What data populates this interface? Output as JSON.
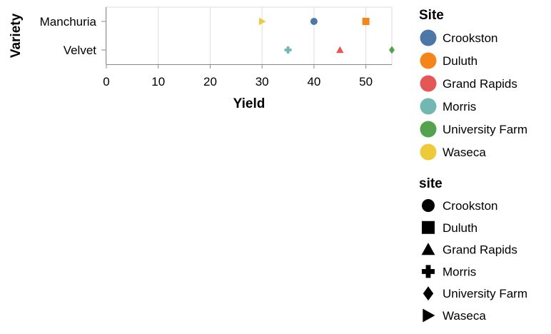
{
  "chart_data": {
    "type": "scatter",
    "xlabel": "Yield",
    "ylabel": "Variety",
    "xlim": [
      0,
      55
    ],
    "x_ticks": [
      0,
      10,
      20,
      30,
      40,
      50
    ],
    "categories": [
      "Manchuria",
      "Velvet"
    ],
    "grid": true,
    "legend_placement": "right",
    "points": [
      {
        "variety": "Manchuria",
        "site": "Waseca",
        "yield": 30
      },
      {
        "variety": "Manchuria",
        "site": "Crookston",
        "yield": 40
      },
      {
        "variety": "Manchuria",
        "site": "Duluth",
        "yield": 50
      },
      {
        "variety": "Velvet",
        "site": "Morris",
        "yield": 35
      },
      {
        "variety": "Velvet",
        "site": "Grand Rapids",
        "yield": 45
      },
      {
        "variety": "Velvet",
        "site": "University Farm",
        "yield": 55
      }
    ],
    "color_legend": {
      "title": "Site",
      "entries": [
        {
          "label": "Crookston",
          "color": "#4c78a8"
        },
        {
          "label": "Duluth",
          "color": "#f58518"
        },
        {
          "label": "Grand Rapids",
          "color": "#e45756"
        },
        {
          "label": "Morris",
          "color": "#72b7b2"
        },
        {
          "label": "University Farm",
          "color": "#54a24b"
        },
        {
          "label": "Waseca",
          "color": "#eeca3b"
        }
      ]
    },
    "shape_legend": {
      "title": "site",
      "entries": [
        {
          "label": "Crookston",
          "shape": "circle"
        },
        {
          "label": "Duluth",
          "shape": "square"
        },
        {
          "label": "Grand Rapids",
          "shape": "triangle-up"
        },
        {
          "label": "Morris",
          "shape": "cross"
        },
        {
          "label": "University Farm",
          "shape": "diamond"
        },
        {
          "label": "Waseca",
          "shape": "triangle-right"
        }
      ]
    }
  }
}
